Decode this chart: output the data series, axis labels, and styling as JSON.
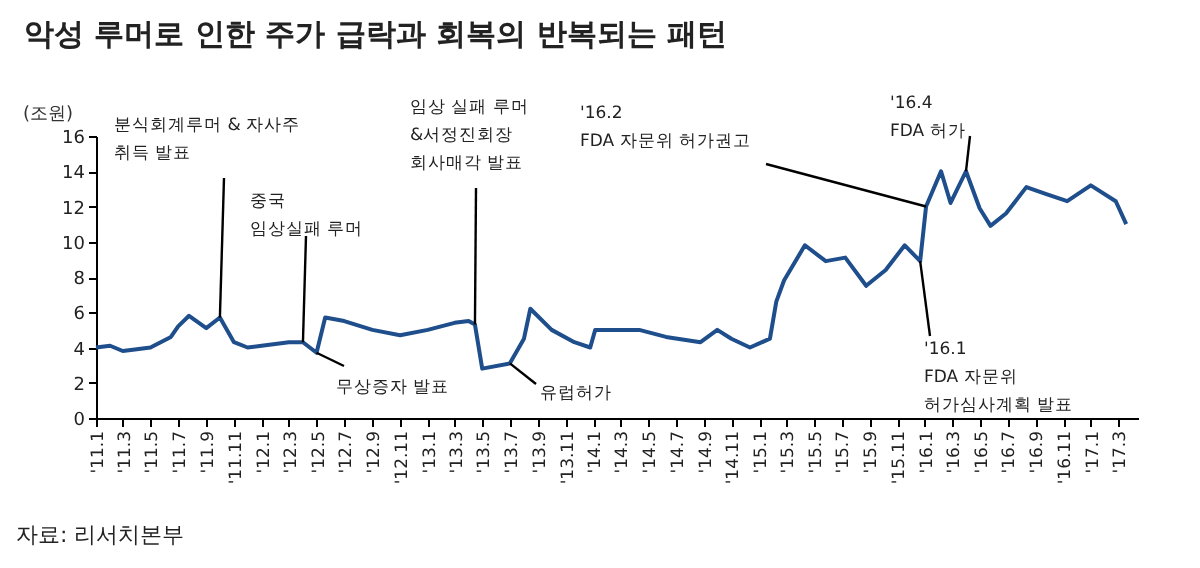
{
  "chart_data": {
    "type": "line",
    "title": "악성 루머로 인한 주가 급락과 회복의 반복되는 패턴",
    "ylabel": "(조원)",
    "x": [
      "2011-01-01",
      "2011-02-01",
      "2011-03-01",
      "2011-04-01",
      "2011-05-01",
      "2011-06-15",
      "2011-07-01",
      "2011-07-25",
      "2011-09-01",
      "2011-10-01",
      "2011-11-01",
      "2011-12-01",
      "2012-01-01",
      "2012-03-01",
      "2012-04-01",
      "2012-05-01",
      "2012-05-20",
      "2012-07-01",
      "2012-09-01",
      "2012-11-01",
      "2013-01-01",
      "2013-03-01",
      "2013-04-01",
      "2013-04-15",
      "2013-05-01",
      "2013-07-01",
      "2013-08-01",
      "2013-08-15",
      "2013-10-01",
      "2013-11-20",
      "2013-12-25",
      "2014-01-05",
      "2014-04-12",
      "2014-06-10",
      "2014-08-25",
      "2014-10-01",
      "2014-11-01",
      "2014-12-12",
      "2015-01-25",
      "2015-02-08",
      "2015-02-25",
      "2015-04-12",
      "2015-05-28",
      "2015-07-10",
      "2015-08-25",
      "2015-10-07",
      "2015-11-18",
      "2015-12-22",
      "2016-01-04",
      "2016-02-06",
      "2016-02-27",
      "2016-04-01",
      "2016-05-01",
      "2016-05-25",
      "2016-06-28",
      "2016-08-12",
      "2016-09-25",
      "2016-11-10",
      "2017-01-01",
      "2017-02-25",
      "2017-03-20"
    ],
    "series": [
      {
        "color": "#1f4e8c",
        "values": [
          4.0,
          4.1,
          3.8,
          3.9,
          4.0,
          4.6,
          5.2,
          5.8,
          5.1,
          5.7,
          4.3,
          4.0,
          4.1,
          4.3,
          4.3,
          3.7,
          5.7,
          5.5,
          5.0,
          4.7,
          5.0,
          5.4,
          5.5,
          5.3,
          2.8,
          3.1,
          4.5,
          6.2,
          5.0,
          4.3,
          4.0,
          5.0,
          5.0,
          4.6,
          4.3,
          5.0,
          4.5,
          4.0,
          4.5,
          6.6,
          7.8,
          9.8,
          8.9,
          9.1,
          7.5,
          8.4,
          9.8,
          8.9,
          12.0,
          14.0,
          12.2,
          14.0,
          11.9,
          10.9,
          11.6,
          13.1,
          12.7,
          12.3,
          13.2,
          12.3,
          11.0
        ]
      }
    ],
    "xlim": [
      "2011-01-01",
      "2017-04-15"
    ],
    "xticks": [
      {
        "value": "2011-01",
        "label": "'11.1"
      },
      {
        "value": "2011-03",
        "label": "'11.3"
      },
      {
        "value": "2011-05",
        "label": "'11.5"
      },
      {
        "value": "2011-07",
        "label": "'11.7"
      },
      {
        "value": "2011-09",
        "label": "'11.9"
      },
      {
        "value": "2011-11",
        "label": "'11.11"
      },
      {
        "value": "2012-01",
        "label": "'12.1"
      },
      {
        "value": "2012-03",
        "label": "'12.3"
      },
      {
        "value": "2012-05",
        "label": "'12.5"
      },
      {
        "value": "2012-07",
        "label": "'12.7"
      },
      {
        "value": "2012-09",
        "label": "'12.9"
      },
      {
        "value": "2012-11",
        "label": "'12.11"
      },
      {
        "value": "2013-01",
        "label": "'13.1"
      },
      {
        "value": "2013-03",
        "label": "'13.3"
      },
      {
        "value": "2013-05",
        "label": "'13.5"
      },
      {
        "value": "2013-07",
        "label": "'13.7"
      },
      {
        "value": "2013-09",
        "label": "'13.9"
      },
      {
        "value": "2013-11",
        "label": "'13.11"
      },
      {
        "value": "2014-01",
        "label": "'14.1"
      },
      {
        "value": "2014-03",
        "label": "'14.3"
      },
      {
        "value": "2014-05",
        "label": "'14.5"
      },
      {
        "value": "2014-07",
        "label": "'14.7"
      },
      {
        "value": "2014-09",
        "label": "'14.9"
      },
      {
        "value": "2014-11",
        "label": "'14.11"
      },
      {
        "value": "2015-01",
        "label": "'15.1"
      },
      {
        "value": "2015-03",
        "label": "'15.3"
      },
      {
        "value": "2015-05",
        "label": "'15.5"
      },
      {
        "value": "2015-07",
        "label": "'15.7"
      },
      {
        "value": "2015-09",
        "label": "'15.9"
      },
      {
        "value": "2015-11",
        "label": "'15.11"
      },
      {
        "value": "2016-01",
        "label": "'16.1"
      },
      {
        "value": "2016-03",
        "label": "'16.3"
      },
      {
        "value": "2016-05",
        "label": "'16.5"
      },
      {
        "value": "2016-07",
        "label": "'16.7"
      },
      {
        "value": "2016-09",
        "label": "'16.9"
      },
      {
        "value": "2016-11",
        "label": "'16.11"
      },
      {
        "value": "2017-01",
        "label": "'17.1"
      },
      {
        "value": "2017-03",
        "label": "'17.3"
      }
    ],
    "ylim": [
      0,
      16
    ],
    "yticks": [
      0,
      2,
      4,
      6,
      8,
      10,
      12,
      14,
      16
    ],
    "annotations": [
      {
        "text": "분식회계루머 & 자사주\n취득 발표",
        "x": "2011-10-01",
        "y": 5.7
      },
      {
        "text": "중국\n임상실패 루머",
        "x": "2012-04-01",
        "y": 4.3
      },
      {
        "text": "무상증자 발표",
        "x": "2012-05-01",
        "y": 3.7
      },
      {
        "text": "임상 실패 루머\n&서정진회장\n회사매각 발표",
        "x": "2013-04-15",
        "y": 5.3
      },
      {
        "text": "유럽허가",
        "x": "2013-07-01",
        "y": 3.1
      },
      {
        "text": "'16.2\nFDA 자문위 허가권고",
        "x": "2016-01-04",
        "y": 12.0
      },
      {
        "text": "'16.4\nFDA 허가",
        "x": "2016-04-01",
        "y": 14.0
      },
      {
        "text": "'16.1\nFDA 자문위\n허가심사계획 발표",
        "x": "2015-12-22",
        "y": 8.9
      },
      "자료: 리서치본부"
    ]
  }
}
